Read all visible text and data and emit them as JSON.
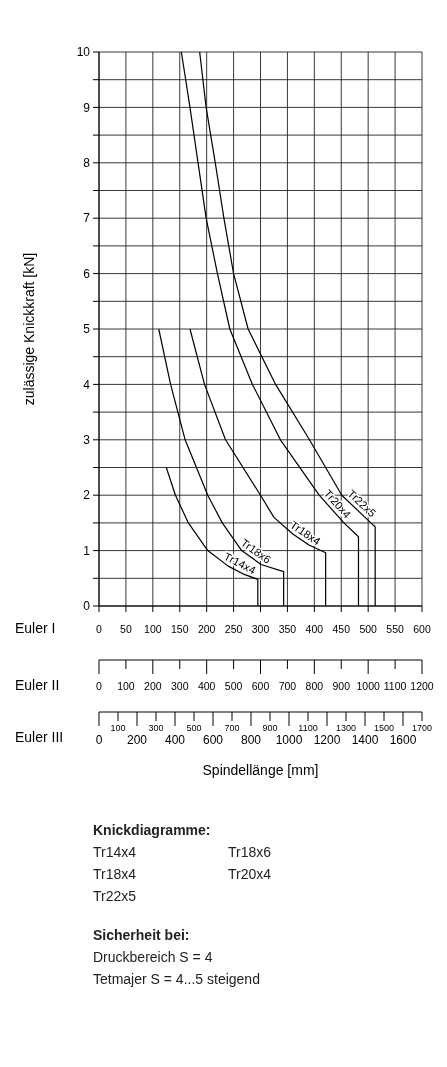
{
  "chart_data": {
    "type": "line",
    "ylabel": "zulässige Knickkraft [kN]",
    "xlabel": "Spindellänge [mm]",
    "x2label": "Euler II",
    "xlim": [
      0,
      600
    ],
    "xticks": [
      0,
      50,
      100,
      150,
      200,
      250,
      300,
      350,
      400,
      450,
      500,
      550,
      600
    ],
    "x2lim": [
      0,
      1200
    ],
    "x2ticks": [
      0,
      100,
      200,
      300,
      400,
      500,
      600,
      700,
      800,
      900,
      1000,
      1100,
      1200
    ],
    "ylim": [
      0,
      10
    ],
    "yticks": [
      0,
      {
        "value": 0.5,
        "label": null
      },
      1,
      {
        "value": 1.5,
        "label": null
      },
      2,
      {
        "value": 2.5,
        "label": null
      },
      3,
      {
        "value": 3.5,
        "label": null
      },
      4,
      {
        "value": 4.5,
        "label": null
      },
      5,
      {
        "value": 5.5,
        "label": null
      },
      6,
      {
        "value": 6.5,
        "label": null
      },
      7,
      {
        "value": 7.5,
        "label": null
      },
      8,
      {
        "value": 8.5,
        "label": null
      },
      9,
      {
        "value": 9.5,
        "label": null
      },
      10
    ],
    "grid": true,
    "series": [
      {
        "name": "Tr14x4",
        "color": "#000000",
        "x": [
          125,
          142,
          166,
          202,
          240,
          270,
          295,
          295
        ],
        "values": [
          2.5,
          2,
          1.5,
          1,
          0.72,
          0.57,
          0.48,
          0
        ]
      },
      {
        "name": "Tr18x6",
        "color": "#000000",
        "x": [
          111,
          133,
          160,
          202,
          229,
          265,
          301,
          343,
          343
        ],
        "values": [
          5,
          4,
          3,
          2,
          1.5,
          1,
          0.75,
          0.62,
          0
        ]
      },
      {
        "name": "Tr18x4",
        "color": "#000000",
        "x": [
          169,
          196,
          235,
          300,
          325,
          360,
          390,
          421,
          421
        ],
        "values": [
          5,
          4,
          3,
          2,
          1.6,
          1.3,
          1.1,
          0.96,
          0
        ]
      },
      {
        "name": "Tr20x4",
        "color": "#000000",
        "x": [
          153,
          169,
          184,
          199,
          220,
          243,
          285,
          337,
          409,
          455,
          482,
          482
        ],
        "values": [
          10,
          9,
          8,
          7,
          6,
          5,
          4,
          3,
          2,
          1.5,
          1.25,
          0
        ]
      },
      {
        "name": "Tr22x5",
        "color": "#000000",
        "x": [
          187,
          199,
          216,
          232,
          250,
          277,
          328,
          391,
          451,
          505,
          513,
          513
        ],
        "values": [
          10,
          9,
          8,
          7,
          6,
          5,
          4,
          3,
          2,
          1.5,
          1.43,
          0
        ]
      }
    ],
    "annotations": [
      "Euler I",
      "Euler III",
      "0",
      "100",
      "200",
      "300",
      "400",
      "500",
      "600",
      "700",
      "800",
      "900",
      "1000",
      "1100",
      "1200",
      "1300",
      "1400",
      "1500",
      "1600",
      "1700",
      "Knickdiagramme:",
      "Tr14x4",
      "Tr18x6",
      "Tr18x4",
      "Tr20x4",
      "Tr22x5",
      "Sicherheit bei:",
      "Druckbereich S = 4",
      "Tetmajer S = 4...5 steigend"
    ]
  }
}
